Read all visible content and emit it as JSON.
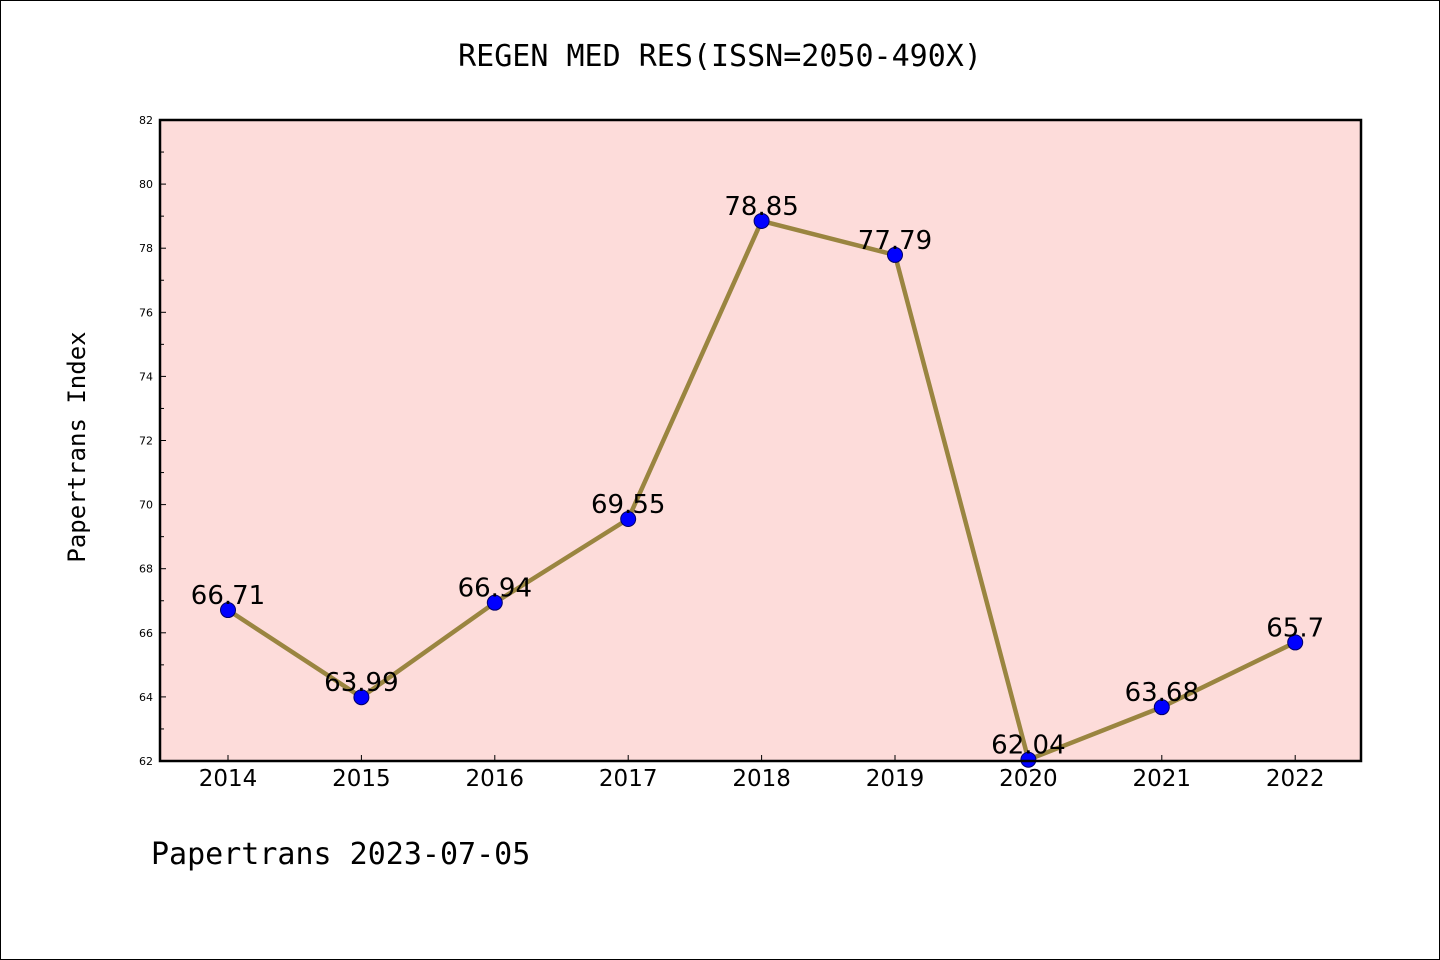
{
  "title": "REGEN MED RES(ISSN=2050-490X)",
  "footer": "Papertrans 2023-07-05",
  "colors": {
    "plot_background": "#fddcda",
    "line": "#9a8540",
    "marker": "#0000ff",
    "axis": "#000000"
  },
  "chart_data": {
    "type": "line",
    "title": "REGEN MED RES(ISSN=2050-490X)",
    "xlabel": "",
    "ylabel": "Papertrans Index",
    "categories": [
      "2014",
      "2015",
      "2016",
      "2017",
      "2018",
      "2019",
      "2020",
      "2021",
      "2022"
    ],
    "series": [
      {
        "values": [
          66.71,
          63.99,
          66.94,
          69.55,
          78.85,
          77.79,
          62.04,
          63.68,
          65.7
        ]
      }
    ],
    "data_labels": [
      "66.71",
      "63.99",
      "66.94",
      "69.55",
      "78.85",
      "77.79",
      "62.04",
      "63.68",
      "65.7"
    ],
    "ylim": [
      62,
      82
    ],
    "yticks": [
      62,
      64,
      66,
      68,
      70,
      72,
      74,
      76,
      78,
      80,
      82
    ],
    "grid": false,
    "legend": "none"
  }
}
